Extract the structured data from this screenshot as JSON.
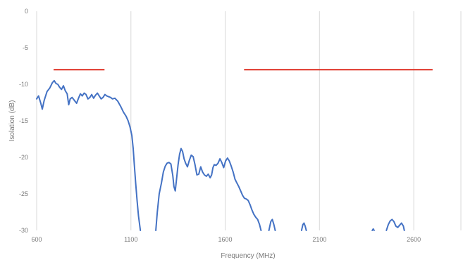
{
  "chart_data": {
    "type": "line",
    "title": "",
    "xlabel": "Frequency (MHz)",
    "ylabel": "Isolation (dB)",
    "xlim": [
      600,
      2850
    ],
    "ylim": [
      -30,
      0
    ],
    "x_ticks": [
      600,
      1100,
      1600,
      2100,
      2600
    ],
    "x_tick_labels": [
      "600",
      "1100",
      "1600",
      "2100",
      "2600"
    ],
    "y_ticks": [
      0,
      -5,
      -10,
      -15,
      -20,
      -25,
      -30
    ],
    "y_tick_labels": [
      "0",
      "-5",
      "-10",
      "-15",
      "-20",
      "-25",
      "-30"
    ],
    "grid": "vertical",
    "series": [
      {
        "color": "#4472c4",
        "segments": [
          [
            [
              600,
              -12.0
            ],
            [
              610,
              -11.6
            ],
            [
              622,
              -12.6
            ],
            [
              630,
              -13.4
            ],
            [
              640,
              -12.2
            ],
            [
              655,
              -11.0
            ],
            [
              670,
              -10.5
            ],
            [
              683,
              -9.8
            ],
            [
              693,
              -9.5
            ],
            [
              703,
              -9.9
            ],
            [
              712,
              -10.0
            ],
            [
              722,
              -10.4
            ],
            [
              732,
              -10.7
            ],
            [
              742,
              -10.2
            ],
            [
              752,
              -10.9
            ],
            [
              762,
              -11.3
            ],
            [
              770,
              -12.8
            ],
            [
              778,
              -12.0
            ],
            [
              788,
              -11.8
            ],
            [
              800,
              -12.2
            ],
            [
              812,
              -12.6
            ],
            [
              822,
              -11.9
            ],
            [
              832,
              -11.3
            ],
            [
              842,
              -11.6
            ],
            [
              852,
              -11.2
            ],
            [
              862,
              -11.4
            ],
            [
              872,
              -12.0
            ],
            [
              882,
              -11.8
            ],
            [
              892,
              -11.4
            ],
            [
              902,
              -11.9
            ],
            [
              912,
              -11.5
            ],
            [
              922,
              -11.2
            ],
            [
              932,
              -11.6
            ],
            [
              942,
              -12.0
            ],
            [
              952,
              -11.8
            ],
            [
              962,
              -11.4
            ],
            [
              972,
              -11.6
            ],
            [
              982,
              -11.7
            ],
            [
              992,
              -11.8
            ],
            [
              1002,
              -12.0
            ],
            [
              1015,
              -11.9
            ],
            [
              1030,
              -12.3
            ],
            [
              1045,
              -13.0
            ],
            [
              1060,
              -13.8
            ],
            [
              1075,
              -14.4
            ],
            [
              1085,
              -15.0
            ],
            [
              1095,
              -15.8
            ],
            [
              1105,
              -17.0
            ],
            [
              1112,
              -18.8
            ],
            [
              1118,
              -21.0
            ],
            [
              1125,
              -23.5
            ],
            [
              1133,
              -26.0
            ],
            [
              1140,
              -28.0
            ],
            [
              1150,
              -30.0
            ]
          ],
          [
            [
              1232,
              -30.0
            ],
            [
              1240,
              -27.5
            ],
            [
              1250,
              -25.0
            ],
            [
              1262,
              -23.5
            ],
            [
              1272,
              -22.0
            ],
            [
              1282,
              -21.2
            ],
            [
              1292,
              -20.8
            ],
            [
              1302,
              -20.7
            ],
            [
              1312,
              -20.9
            ],
            [
              1322,
              -22.5
            ],
            [
              1328,
              -24.0
            ],
            [
              1335,
              -24.6
            ],
            [
              1342,
              -23.0
            ],
            [
              1350,
              -21.0
            ],
            [
              1358,
              -19.6
            ],
            [
              1366,
              -18.8
            ],
            [
              1374,
              -19.2
            ],
            [
              1382,
              -20.2
            ],
            [
              1390,
              -20.8
            ],
            [
              1400,
              -21.3
            ],
            [
              1410,
              -20.4
            ],
            [
              1420,
              -19.7
            ],
            [
              1430,
              -19.9
            ],
            [
              1440,
              -21.0
            ],
            [
              1450,
              -22.4
            ],
            [
              1460,
              -22.3
            ],
            [
              1470,
              -21.3
            ],
            [
              1480,
              -22.0
            ],
            [
              1490,
              -22.4
            ],
            [
              1500,
              -22.6
            ],
            [
              1510,
              -22.3
            ],
            [
              1520,
              -22.8
            ],
            [
              1528,
              -22.4
            ],
            [
              1535,
              -21.4
            ],
            [
              1542,
              -21.0
            ],
            [
              1552,
              -21.1
            ],
            [
              1562,
              -20.8
            ],
            [
              1572,
              -20.2
            ],
            [
              1582,
              -20.7
            ],
            [
              1592,
              -21.4
            ],
            [
              1602,
              -20.5
            ],
            [
              1612,
              -20.1
            ],
            [
              1622,
              -20.5
            ],
            [
              1632,
              -21.2
            ],
            [
              1642,
              -22.0
            ],
            [
              1652,
              -23.0
            ],
            [
              1662,
              -23.5
            ],
            [
              1672,
              -24.0
            ],
            [
              1682,
              -24.6
            ],
            [
              1692,
              -25.2
            ],
            [
              1702,
              -25.6
            ],
            [
              1712,
              -25.7
            ],
            [
              1722,
              -25.9
            ],
            [
              1732,
              -26.5
            ],
            [
              1742,
              -27.2
            ],
            [
              1752,
              -27.8
            ],
            [
              1762,
              -28.2
            ],
            [
              1772,
              -28.5
            ],
            [
              1782,
              -29.2
            ],
            [
              1790,
              -30.0
            ]
          ],
          [
            [
              1832,
              -30.0
            ],
            [
              1842,
              -28.8
            ],
            [
              1850,
              -28.5
            ],
            [
              1858,
              -29.2
            ],
            [
              1865,
              -30.0
            ]
          ],
          [
            [
              2005,
              -30.0
            ],
            [
              2012,
              -29.2
            ],
            [
              2018,
              -29.0
            ],
            [
              2024,
              -29.4
            ],
            [
              2030,
              -30.0
            ]
          ],
          [
            [
              2380,
              -30.0
            ],
            [
              2385,
              -29.8
            ],
            [
              2390,
              -30.0
            ]
          ],
          [
            [
              2455,
              -30.0
            ],
            [
              2465,
              -29.2
            ],
            [
              2475,
              -28.7
            ],
            [
              2485,
              -28.5
            ],
            [
              2495,
              -28.8
            ],
            [
              2505,
              -29.4
            ],
            [
              2515,
              -29.6
            ],
            [
              2525,
              -29.3
            ],
            [
              2535,
              -29.0
            ],
            [
              2545,
              -29.4
            ],
            [
              2550,
              -30.0
            ]
          ]
        ]
      }
    ],
    "reference_lines": [
      {
        "color": "#e03a2e",
        "x": [
          690,
          960
        ],
        "y": -8.0
      },
      {
        "color": "#e03a2e",
        "x": [
          1700,
          2700
        ],
        "y": -8.0
      }
    ]
  }
}
